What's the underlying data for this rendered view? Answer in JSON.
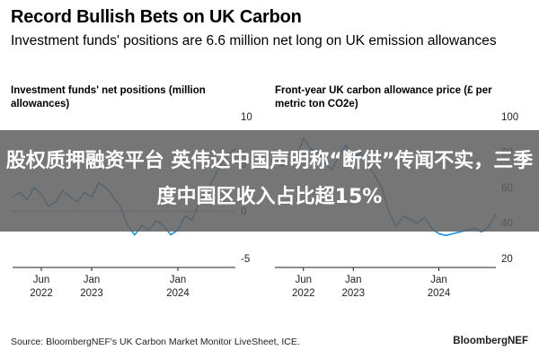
{
  "title": "Record Bullish Bets on UK Carbon",
  "subtitle": "Investment funds' positions are 6.6 million net long on UK emission allowances",
  "source": "Source: BloombergNEF's UK Carbon Market Monitor LiveSheet, ICE.",
  "brand": "BloombergNEF",
  "overlay_text": "股权质押融资平台 英伟达中国声明称“断供”传闻不实，三季度中国区收入占比超15%",
  "colors": {
    "line": "#1a8fe3",
    "zero_line": "#999999",
    "overlay": "#5f5f5f"
  },
  "chart_data": [
    {
      "type": "line",
      "title": "Investment funds' net positions (million allowances)",
      "y_axis_side": "right",
      "ylim": [
        -5,
        10
      ],
      "yticks": [
        10,
        5,
        0,
        -5
      ],
      "xtick_labels": [
        [
          "Jun",
          "2022"
        ],
        [
          "Jan",
          "2023"
        ],
        [
          "Jan",
          "2024"
        ]
      ],
      "xtick_positions": [
        "2022-06",
        "2023-01",
        "2024-01"
      ],
      "xlim": [
        "2022-02",
        "2024-09"
      ],
      "series": [
        {
          "x": [
            "2022-02",
            "2022-03",
            "2022-04",
            "2022-05",
            "2022-06",
            "2022-07",
            "2022-08",
            "2022-09",
            "2022-10",
            "2022-11",
            "2022-12",
            "2023-01",
            "2023-02",
            "2023-03",
            "2023-04",
            "2023-05",
            "2023-06",
            "2023-07",
            "2023-08",
            "2023-09",
            "2023-10",
            "2023-11",
            "2023-12",
            "2024-01",
            "2024-02",
            "2024-03",
            "2024-04",
            "2024-05",
            "2024-06",
            "2024-07",
            "2024-08",
            "2024-09"
          ],
          "values": [
            1.5,
            2.0,
            1.2,
            2.5,
            1.8,
            0.5,
            1.0,
            2.2,
            1.5,
            1.0,
            2.0,
            1.5,
            3.0,
            2.5,
            1.5,
            0.5,
            -1.5,
            -2.5,
            -1.5,
            -2.0,
            -1.0,
            -1.5,
            -2.5,
            -2.0,
            -0.5,
            -1.0,
            1.0,
            2.0,
            3.5,
            5.0,
            6.0,
            6.6
          ]
        }
      ]
    },
    {
      "type": "line",
      "title": "Front-year UK carbon allowance price (£ per metric ton CO2e)",
      "y_axis_side": "right",
      "ylim": [
        20,
        100
      ],
      "yticks": [
        100,
        80,
        60,
        40,
        20
      ],
      "xtick_labels": [
        [
          "Jun",
          "2022"
        ],
        [
          "Jan",
          "2023"
        ],
        [
          "Jan",
          "2024"
        ]
      ],
      "xtick_positions": [
        "2022-06",
        "2023-01",
        "2024-01"
      ],
      "xlim": [
        "2022-02",
        "2024-09"
      ],
      "series": [
        {
          "x": [
            "2022-02",
            "2022-03",
            "2022-04",
            "2022-05",
            "2022-06",
            "2022-07",
            "2022-08",
            "2022-09",
            "2022-10",
            "2022-11",
            "2022-12",
            "2023-01",
            "2023-02",
            "2023-03",
            "2023-04",
            "2023-05",
            "2023-06",
            "2023-07",
            "2023-08",
            "2023-09",
            "2023-10",
            "2023-11",
            "2023-12",
            "2024-01",
            "2024-02",
            "2024-03",
            "2024-04",
            "2024-05",
            "2024-06",
            "2024-07",
            "2024-08",
            "2024-09"
          ],
          "values": [
            78,
            72,
            80,
            76,
            88,
            82,
            80,
            74,
            70,
            78,
            84,
            76,
            80,
            73,
            67,
            60,
            46,
            38,
            44,
            42,
            40,
            43,
            37,
            34,
            33,
            34,
            35,
            36,
            37,
            35,
            38,
            45
          ]
        }
      ]
    }
  ]
}
